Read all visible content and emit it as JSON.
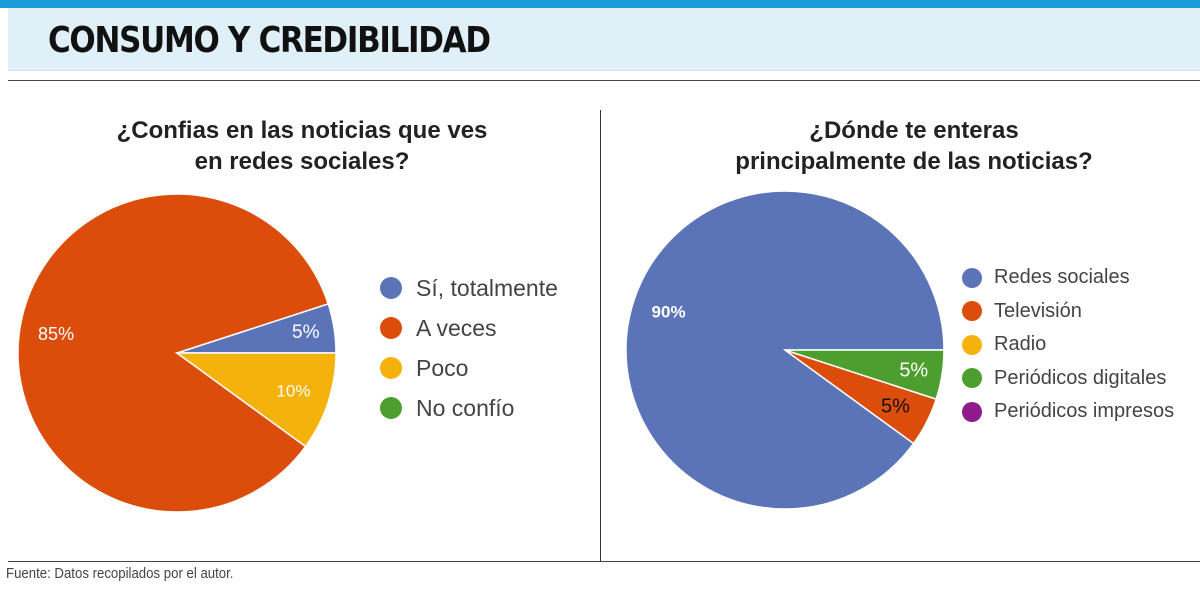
{
  "header": {
    "title": "CONSUMO Y CREDIBILIDAD"
  },
  "source": "Fuente: Datos recopilados por el autor.",
  "chart_data": [
    {
      "type": "pie",
      "title": [
        "¿Confias en las noticias que ves",
        "en redes sociales?"
      ],
      "categories": [
        "Sí, totalmente",
        "A veces",
        "Poco",
        "No confío"
      ],
      "values": [
        5,
        85,
        10,
        0
      ],
      "labels": [
        "5%",
        "85%",
        "10%",
        ""
      ],
      "colors": [
        "#5b74b8",
        "#dc4d0c",
        "#f4b20a",
        "#4c9e2e"
      ],
      "label_colors": [
        "#ffffff",
        "#ffffff",
        "#ffffff",
        "#ffffff"
      ],
      "legend_position": "right"
    },
    {
      "type": "pie",
      "title": [
        "¿Dónde te enteras",
        "principalmente de las noticias?"
      ],
      "categories": [
        "Redes sociales",
        "Televisión",
        "Radio",
        "Periódicos digitales",
        "Periódicos impresos"
      ],
      "values": [
        90,
        5,
        0,
        5,
        0
      ],
      "labels": [
        "90%",
        "5%",
        "",
        "5%",
        ""
      ],
      "colors": [
        "#5b74b8",
        "#dc4d0c",
        "#f4b20a",
        "#4c9e2e",
        "#8e1a8e"
      ],
      "label_colors": [
        "#ffffff",
        "#111111",
        "#111111",
        "#ffffff",
        "#ffffff"
      ],
      "legend_position": "right"
    }
  ]
}
